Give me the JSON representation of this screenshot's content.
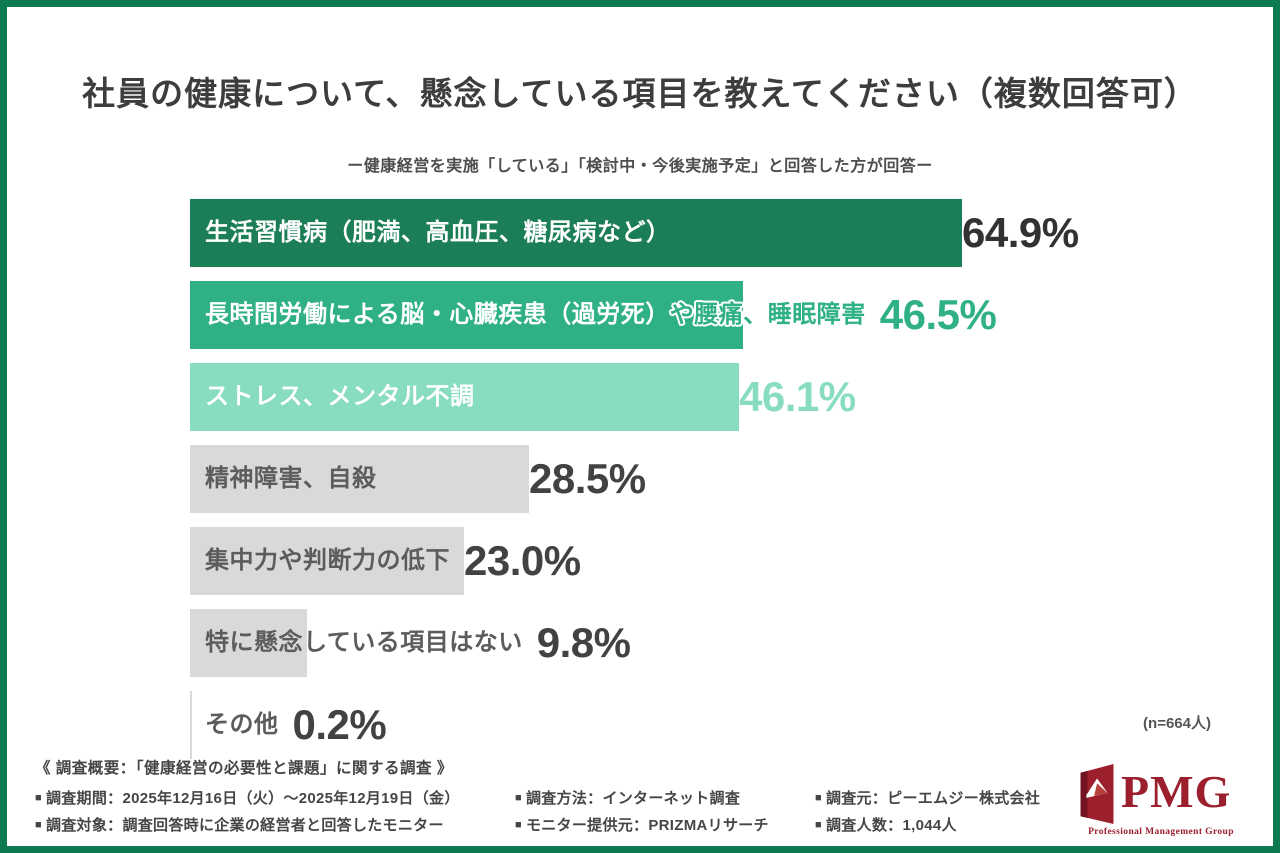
{
  "header": {
    "title": "社員の健康について、懸念している項目を教えてください（複数回答可）",
    "subtitle": "ー健康経営を実施「している」「検討中・今後実施予定」と回答した方が回答ー"
  },
  "chart_data": {
    "type": "bar",
    "orientation": "horizontal",
    "title": "社員の健康について、懸念している項目を教えてください（複数回答可）",
    "subtitle": "ー健康経営を実施「している」「検討中・今後実施予定」と回答した方が回答ー",
    "unit": "%",
    "xlim": [
      0,
      70
    ],
    "grid": false,
    "legend": false,
    "sample_note": "(n=664人)",
    "categories": [
      "生活習慣病（肥満、高血圧、糖尿病など）",
      "長時間労働による脳・心臓疾患（過労死）や腰痛、睡眠障害",
      "ストレス、メンタル不調",
      "精神障害、自殺",
      "集中力や判断力の低下",
      "特に懸念している項目はない",
      "その他"
    ],
    "values": [
      64.9,
      46.5,
      46.1,
      28.5,
      23.0,
      9.8,
      0.2
    ],
    "bars": [
      {
        "label_in": "生活習慣病（肥満、高血圧、糖尿病など）",
        "label_out": "",
        "value": 64.9,
        "pct_label": "64.9%",
        "bar_color": "#1b7e57",
        "label_in_color": "#ffffff",
        "label_out_color": "",
        "out_stroke": false,
        "pct_color": "#323232"
      },
      {
        "label_in": "長時間労働による脳・心臓疾患（過労死）",
        "label_out": "や腰痛、睡眠障害",
        "value": 46.5,
        "pct_label": "46.5%",
        "bar_color": "#2fb184",
        "label_in_color": "#ffffff",
        "label_out_color": "#2fb184",
        "out_stroke": true,
        "pct_color": "#2fb184"
      },
      {
        "label_in": "ストレス、メンタル不調",
        "label_out": "",
        "value": 46.1,
        "pct_label": "46.1%",
        "bar_color": "#87dcc1",
        "label_in_color": "#ffffff",
        "label_out_color": "",
        "out_stroke": false,
        "pct_color": "#87dcc1"
      },
      {
        "label_in": "精神障害、自殺",
        "label_out": "",
        "value": 28.5,
        "pct_label": "28.5%",
        "bar_color": "#d9d9d9",
        "label_in_color": "#5c5c5c",
        "label_out_color": "",
        "out_stroke": false,
        "pct_color": "#424242"
      },
      {
        "label_in": "集中力や判断力の低下",
        "label_out": "",
        "value": 23.0,
        "pct_label": "23.0%",
        "bar_color": "#d9d9d9",
        "label_in_color": "#5c5c5c",
        "label_out_color": "",
        "out_stroke": false,
        "pct_color": "#424242"
      },
      {
        "label_in": "特に懸念している項目はない",
        "label_out": "",
        "value": 9.8,
        "pct_label": "9.8%",
        "bar_color": "#d9d9d9",
        "label_in_color": "#5c5c5c",
        "label_out_color": "",
        "out_stroke": false,
        "pct_color": "#424242"
      },
      {
        "label_in": "その他",
        "label_out": "",
        "value": 0.2,
        "pct_label": "0.2%",
        "bar_color": "#d9d9d9",
        "label_in_color": "#5c5c5c",
        "label_out_color": "",
        "out_stroke": false,
        "pct_color": "#424242"
      }
    ]
  },
  "footer": {
    "overview": "《 調査概要：「健康経営の必要性と課題」に関する調査 》",
    "columns": [
      [
        {
          "bullet": "■",
          "text": "調査期間：2025年12月16日（火）〜2025年12月19日（金）"
        },
        {
          "bullet": "■",
          "text": "調査対象：調査回答時に企業の経営者と回答したモニター"
        }
      ],
      [
        {
          "bullet": "■",
          "text": "調査方法：インターネット調査"
        },
        {
          "bullet": "■",
          "text": "モニター提供元：PRIZMAリサーチ"
        }
      ],
      [
        {
          "bullet": "■",
          "text": "調査元：ピーエムジー株式会社"
        },
        {
          "bullet": "■",
          "text": "調査人数：1,044人"
        }
      ]
    ]
  },
  "logo": {
    "text": "PMG",
    "subtext": "Professional Management Group",
    "color_primary": "#9c1f2e",
    "color_dark": "#6f1420"
  },
  "colors": {
    "frame_border": "#0e7a4f",
    "background": "#ffffff",
    "title_text": "#3d3d3d",
    "bar_dark_green": "#1b7e57",
    "bar_medium_green": "#2fb184",
    "bar_light_green": "#87dcc1",
    "bar_gray": "#d9d9d9"
  }
}
